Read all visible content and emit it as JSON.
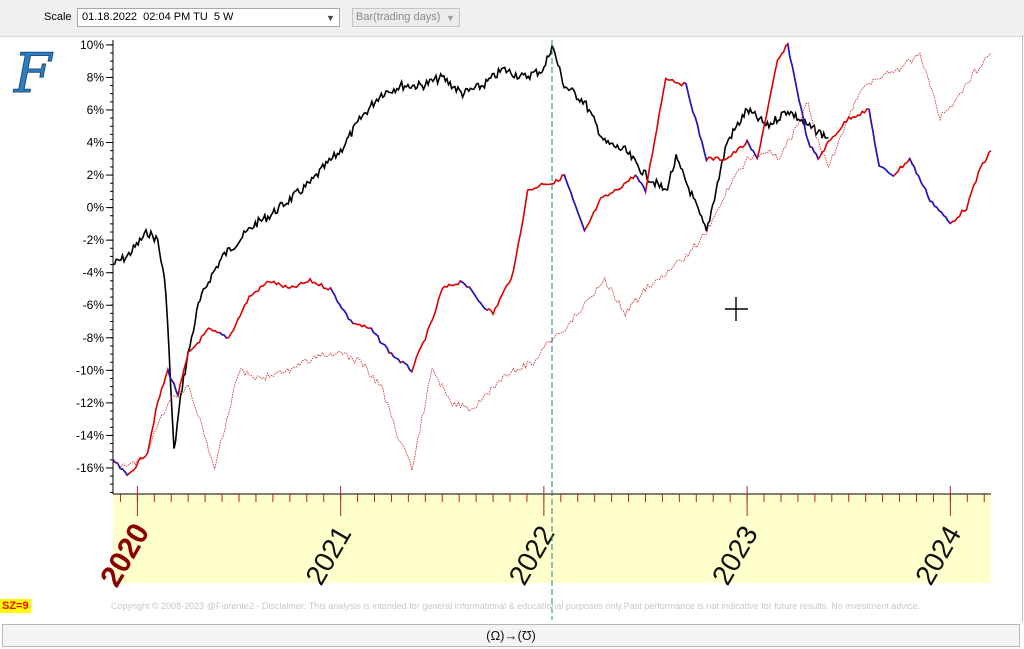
{
  "toolbar": {
    "scale_label": "Scale",
    "scale_value": "01.18.2022  02:04 PM TU  5 W",
    "mode_value": "Bar(trading days)"
  },
  "logo": {
    "letter": "F"
  },
  "badge": {
    "sz": "SZ=9"
  },
  "footer": {
    "copyright": "Copyright © 2008-2023 @Fiorente2 -  Disclaimer: This analysis is intended for general informational & educational purposes only.Past performance is not indicative for future results. No investment advice.",
    "bottom_button": "(Ω)→(Ʊ)"
  },
  "colors": {
    "black_series": "#000000",
    "red_series": "#dd0000",
    "blue_segments": "#1a1acc",
    "dotted_series": "#cc2222",
    "timeline_band": "#ffffcc",
    "year_2020": "#8b0000",
    "cursor_line": "#1e7d8c"
  },
  "chart_data": {
    "type": "line",
    "y_tick_labels": [
      "10%",
      "8%",
      "6%",
      "4%",
      "2%",
      "0%",
      "-2%",
      "-4%",
      "-6%",
      "-8%",
      "-10%",
      "-12%",
      "-14%",
      "-16%"
    ],
    "y_ticks": [
      10,
      8,
      6,
      4,
      2,
      0,
      -2,
      -4,
      -6,
      -8,
      -10,
      -12,
      -14,
      -16
    ],
    "ylim": [
      -17.6,
      10.3
    ],
    "x_tick_labels": [
      "2020",
      "2021",
      "2022",
      "2023",
      "2024"
    ],
    "x_ticks": [
      2020.0,
      2021.0,
      2022.0,
      2023.0,
      2024.0
    ],
    "xlim": [
      2019.88,
      2024.2
    ],
    "cursor_x": 2022.04,
    "series": [
      {
        "style": "black",
        "x": [
          2019.88,
          2019.95,
          2020.05,
          2020.1,
          2020.14,
          2020.18,
          2020.22,
          2020.25,
          2020.3,
          2020.35,
          2020.42,
          2020.5,
          2020.58,
          2020.65,
          2020.75,
          2020.85,
          2020.92,
          2021.0,
          2021.1,
          2021.2,
          2021.3,
          2021.4,
          2021.5,
          2021.6,
          2021.7,
          2021.8,
          2021.9,
          2022.0,
          2022.04,
          2022.1,
          2022.2,
          2022.3,
          2022.4,
          2022.5,
          2022.6,
          2022.65,
          2022.72,
          2022.8,
          2022.9,
          2023.0,
          2023.1,
          2023.2,
          2023.3,
          2023.4
        ],
        "y": [
          -3.5,
          -3,
          -1.5,
          -2,
          -5,
          -15,
          -11,
          -9,
          -6,
          -4.5,
          -3,
          -2,
          -1,
          -0.5,
          0.5,
          1.5,
          2.5,
          3.5,
          5.5,
          7,
          7.5,
          7.5,
          8,
          7,
          7.5,
          8.5,
          8,
          8.5,
          10,
          7.5,
          6.5,
          4,
          3.5,
          2,
          1,
          3,
          1,
          -1.5,
          4,
          6,
          5,
          6,
          5,
          4.3
        ]
      },
      {
        "style": "red_blue",
        "x": [
          2019.88,
          2019.95,
          2020.05,
          2020.1,
          2020.15,
          2020.2,
          2020.25,
          2020.35,
          2020.45,
          2020.55,
          2020.65,
          2020.75,
          2020.85,
          2020.95,
          2021.05,
          2021.15,
          2021.25,
          2021.35,
          2021.45,
          2021.5,
          2021.6,
          2021.7,
          2021.75,
          2021.85,
          2021.92,
          2022.0,
          2022.05,
          2022.1,
          2022.2,
          2022.28,
          2022.35,
          2022.45,
          2022.5,
          2022.6,
          2022.7,
          2022.8,
          2022.9,
          2023.0,
          2023.05,
          2023.15,
          2023.2,
          2023.3,
          2023.35,
          2023.4,
          2023.5,
          2023.6,
          2023.65,
          2023.72,
          2023.8,
          2023.9,
          2024.0,
          2024.08,
          2024.15,
          2024.2
        ],
        "y": [
          -15.5,
          -16.5,
          -15,
          -12,
          -10,
          -11.5,
          -9,
          -7.5,
          -8,
          -5.5,
          -4.5,
          -5,
          -4.5,
          -5,
          -7,
          -7.5,
          -9,
          -10,
          -7,
          -5,
          -4.5,
          -6,
          -6.5,
          -4,
          1,
          1.5,
          1.5,
          2,
          -1.5,
          0.5,
          1,
          2,
          1,
          8,
          7.5,
          3,
          3,
          4,
          3,
          9,
          10,
          4,
          3,
          4,
          5.5,
          6,
          2.5,
          2,
          3,
          0.5,
          -1,
          0,
          2.5,
          3.5
        ]
      },
      {
        "style": "dotted",
        "x": [
          2019.88,
          2019.95,
          2020.05,
          2020.15,
          2020.25,
          2020.32,
          2020.38,
          2020.5,
          2020.6,
          2020.75,
          2020.9,
          2021.0,
          2021.1,
          2021.2,
          2021.28,
          2021.35,
          2021.45,
          2021.55,
          2021.65,
          2021.75,
          2021.85,
          2021.95,
          2022.0,
          2022.1,
          2022.2,
          2022.3,
          2022.4,
          2022.5,
          2022.6,
          2022.7,
          2022.8,
          2022.9,
          2023.0,
          2023.1,
          2023.15,
          2023.25,
          2023.3,
          2023.35,
          2023.4,
          2023.48,
          2023.55,
          2023.65,
          2023.75,
          2023.85,
          2023.95,
          2024.05,
          2024.1,
          2024.2
        ],
        "y": [
          -15.5,
          -16,
          -15,
          -12,
          -11,
          -13.5,
          -16,
          -10,
          -10.5,
          -10,
          -9,
          -9,
          -9.5,
          -11,
          -14,
          -16,
          -10,
          -12,
          -12.5,
          -11,
          -10,
          -9.5,
          -8.5,
          -7.5,
          -6,
          -4.5,
          -6.5,
          -5,
          -4,
          -3,
          -1.5,
          1,
          3,
          3.5,
          3,
          5,
          6.5,
          4,
          2.5,
          5,
          7,
          8,
          8.5,
          9.5,
          5.5,
          7,
          8,
          9.5
        ]
      }
    ]
  }
}
